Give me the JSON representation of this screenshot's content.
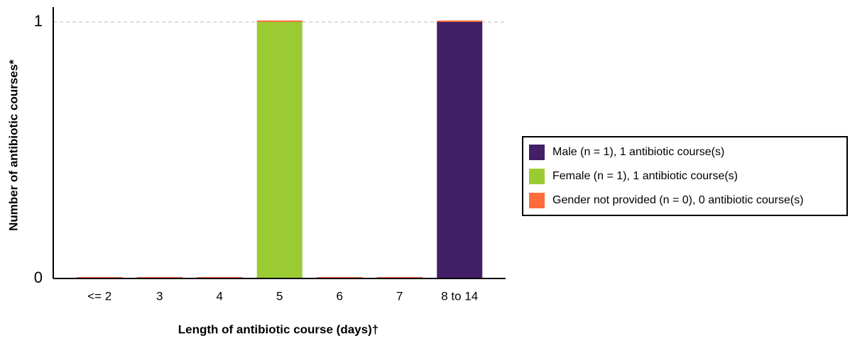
{
  "chart_data": {
    "type": "bar",
    "stacked": true,
    "x_label": "Length of antibiotic course (days)†",
    "y_label": "Number of antibiotic courses*",
    "categories": [
      "<= 2",
      "3",
      "4",
      "5",
      "6",
      "7",
      "8 to 14"
    ],
    "series": [
      {
        "name": "Male (n = 1), 1 antibiotic course(s)",
        "color": "#421f67",
        "values": [
          0,
          0,
          0,
          0,
          0,
          0,
          1
        ]
      },
      {
        "name": "Female (n = 1), 1 antibiotic course(s)",
        "color": "#9bcb32",
        "values": [
          0,
          0,
          0,
          1,
          0,
          0,
          0
        ]
      },
      {
        "name": "Gender not provided (n = 0), 0 antibiotic course(s)",
        "color": "#ff6b3d",
        "values": [
          0,
          0,
          0,
          0,
          0,
          0,
          0
        ]
      }
    ],
    "ylim": [
      0,
      1
    ],
    "yticks": [
      0,
      1
    ],
    "grid": true,
    "legend": "right"
  }
}
